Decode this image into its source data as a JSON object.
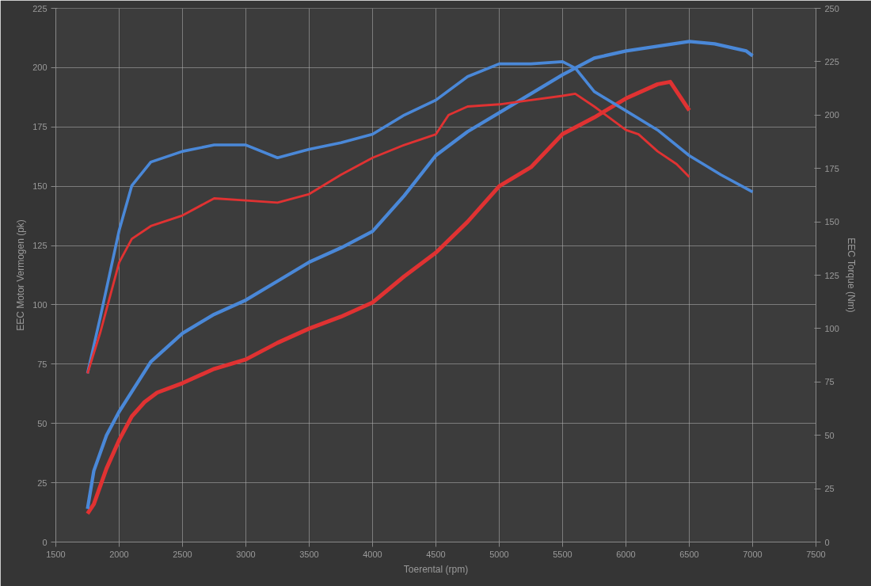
{
  "chart_data": {
    "type": "line",
    "xlabel": "Toerental (rpm)",
    "ylabel": "EEC Motor Vermogen (pk)",
    "y2label": "EEC Torque (Nm)",
    "xlim": [
      1500,
      7500
    ],
    "xticks": [
      1500,
      2000,
      2500,
      3000,
      3500,
      4000,
      4500,
      5000,
      5500,
      6000,
      6500,
      7000,
      7500
    ],
    "ylim": [
      0,
      225
    ],
    "yticks": [
      0,
      25,
      50,
      75,
      100,
      125,
      150,
      175,
      200,
      225
    ],
    "y2lim": [
      0,
      250
    ],
    "y2ticks": [
      0,
      25,
      50,
      75,
      100,
      125,
      150,
      175,
      200,
      225,
      250
    ],
    "grid": true,
    "line_style": "solid",
    "series": [
      {
        "color": "#e03232",
        "x": [
          1750,
          1800,
          1900,
          2000,
          2100,
          2200,
          2300,
          2500,
          2750,
          3000,
          3250,
          3500,
          3750,
          4000,
          4250,
          4500,
          4750,
          5000,
          5250,
          5500,
          5750,
          6000,
          6250,
          6350,
          6450,
          6500
        ],
        "values": [
          12,
          16,
          31,
          43,
          53,
          59,
          63,
          67,
          73,
          77,
          84,
          90,
          95,
          101,
          112,
          122,
          135,
          150,
          158,
          172,
          179,
          187,
          193,
          194,
          186,
          182
        ]
      },
      {
        "color": "#4a88d8",
        "x": [
          1750,
          1800,
          1900,
          2000,
          2250,
          2500,
          2750,
          3000,
          3250,
          3500,
          3750,
          4000,
          4250,
          4500,
          4750,
          5000,
          5250,
          5500,
          5750,
          6000,
          6250,
          6500,
          6700,
          6950,
          7000
        ],
        "values": [
          14,
          30,
          45,
          55,
          76,
          88,
          96,
          102,
          110,
          118,
          124,
          131,
          146,
          163,
          173,
          181,
          189,
          197,
          204,
          207,
          209,
          211,
          210,
          207,
          205
        ]
      },
      {
        "color": "#4a88d8",
        "axis": "y2",
        "x": [
          1750,
          1850,
          2000,
          2100,
          2250,
          2500,
          2750,
          3000,
          3250,
          3500,
          3750,
          4000,
          4250,
          4500,
          4750,
          5000,
          5250,
          5500,
          5600,
          5750,
          6000,
          6250,
          6500,
          6750,
          7000
        ],
        "values": [
          79,
          105,
          146,
          167,
          178,
          183,
          186,
          186,
          180,
          184,
          187,
          191,
          200,
          207,
          218,
          224,
          224,
          225,
          222,
          211,
          202,
          193,
          181,
          172,
          164
        ]
      },
      {
        "color": "#e03232",
        "axis": "y2",
        "x": [
          1750,
          1850,
          2000,
          2100,
          2250,
          2500,
          2750,
          3000,
          3250,
          3500,
          3750,
          4000,
          4250,
          4500,
          4600,
          4750,
          5000,
          5250,
          5500,
          5600,
          5750,
          6000,
          6100,
          6250,
          6400,
          6500
        ],
        "values": [
          79,
          98,
          131,
          142,
          148,
          153,
          161,
          160,
          159,
          163,
          172,
          180,
          186,
          191,
          200,
          204,
          205,
          207,
          209,
          210,
          204,
          193,
          191,
          183,
          177,
          171
        ]
      }
    ]
  }
}
